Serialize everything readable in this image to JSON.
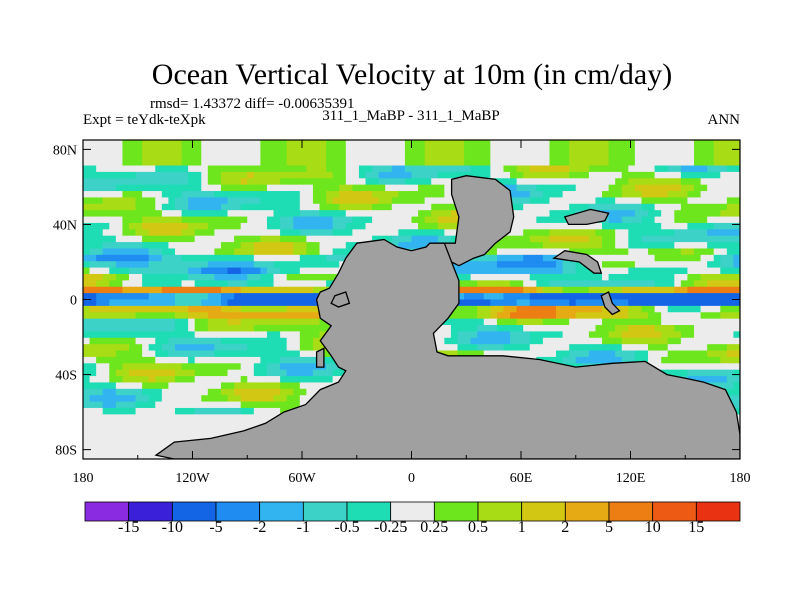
{
  "chart_data": {
    "type": "heatmap",
    "title": "Ocean Vertical Velocity at 10m (in cm/day)",
    "stats_text": "rmsd= 1.43372 diff= -0.00635391",
    "left_label": "Expt = teYdk-teXpk",
    "center_label": "311_1_MaBP - 311_1_MaBP",
    "right_label": "ANN",
    "x_ticks": [
      {
        "value": -180,
        "label": "180"
      },
      {
        "value": -120,
        "label": "120W"
      },
      {
        "value": -60,
        "label": "60W"
      },
      {
        "value": 0,
        "label": "0"
      },
      {
        "value": 60,
        "label": "60E"
      },
      {
        "value": 120,
        "label": "120E"
      },
      {
        "value": 180,
        "label": "180"
      }
    ],
    "y_ticks": [
      {
        "value": 80,
        "label": "80N"
      },
      {
        "value": 40,
        "label": "40N"
      },
      {
        "value": 0,
        "label": "0"
      },
      {
        "value": -40,
        "label": "40S"
      },
      {
        "value": -80,
        "label": "80S"
      }
    ],
    "xlim": [
      -180,
      180
    ],
    "ylim": [
      -85,
      85
    ],
    "colorbar": {
      "labels": [
        "-15",
        "-10",
        "-5",
        "-2",
        "-1",
        "-0.5",
        "-0.25",
        "0.25",
        "0.5",
        "1",
        "2",
        "5",
        "10",
        "15"
      ],
      "colors": [
        "#8a2be2",
        "#3a20d8",
        "#1464e6",
        "#1e8cf0",
        "#32b4f0",
        "#3cd2c8",
        "#1edcb4",
        "#ececec",
        "#6ee61e",
        "#a8dc14",
        "#d2c814",
        "#e6aa14",
        "#ec7e14",
        "#ec5a14",
        "#e83212"
      ]
    },
    "land_color": "#a0a0a0",
    "land_polygons": [
      {
        "name": "pangaea-west",
        "points": [
          [
            -30,
            30
          ],
          [
            -15,
            32
          ],
          [
            -8,
            28
          ],
          [
            0,
            26
          ],
          [
            8,
            28
          ],
          [
            10,
            30
          ],
          [
            18,
            30
          ],
          [
            20,
            28
          ],
          [
            22,
            20
          ],
          [
            26,
            10
          ],
          [
            26,
            -2
          ],
          [
            20,
            -10
          ],
          [
            12,
            -18
          ],
          [
            14,
            -28
          ],
          [
            20,
            -30
          ],
          [
            35,
            -30
          ],
          [
            50,
            -30
          ],
          [
            70,
            -32
          ],
          [
            90,
            -36
          ],
          [
            110,
            -34
          ],
          [
            128,
            -33
          ],
          [
            140,
            -40
          ],
          [
            150,
            -42
          ],
          [
            160,
            -44
          ],
          [
            172,
            -48
          ],
          [
            178,
            -60
          ],
          [
            180,
            -72
          ],
          [
            180,
            -85
          ],
          [
            -130,
            -85
          ],
          [
            -140,
            -83
          ],
          [
            -130,
            -76
          ],
          [
            -110,
            -74
          ],
          [
            -92,
            -70
          ],
          [
            -80,
            -66
          ],
          [
            -70,
            -60
          ],
          [
            -58,
            -56
          ],
          [
            -50,
            -48
          ],
          [
            -40,
            -44
          ],
          [
            -36,
            -38
          ],
          [
            -40,
            -36
          ],
          [
            -44,
            -30
          ],
          [
            -50,
            -22
          ],
          [
            -44,
            -14
          ],
          [
            -50,
            -10
          ],
          [
            -52,
            0
          ],
          [
            -50,
            4
          ],
          [
            -45,
            6
          ],
          [
            -40,
            14
          ],
          [
            -36,
            22
          ]
        ]
      },
      {
        "name": "pangaea-north",
        "points": [
          [
            18,
            30
          ],
          [
            24,
            30
          ],
          [
            26,
            44
          ],
          [
            22,
            56
          ],
          [
            22,
            64
          ],
          [
            30,
            66
          ],
          [
            46,
            64
          ],
          [
            54,
            58
          ],
          [
            56,
            44
          ],
          [
            54,
            36
          ],
          [
            46,
            30
          ],
          [
            40,
            24
          ],
          [
            34,
            22
          ],
          [
            26,
            18
          ],
          [
            22,
            20
          ]
        ]
      },
      {
        "name": "east-terrane",
        "points": [
          [
            78,
            22
          ],
          [
            92,
            20
          ],
          [
            100,
            14
          ],
          [
            104,
            14
          ],
          [
            102,
            20
          ],
          [
            96,
            24
          ],
          [
            84,
            26
          ]
        ]
      },
      {
        "name": "east-island-north",
        "points": [
          [
            84,
            44
          ],
          [
            98,
            48
          ],
          [
            108,
            46
          ],
          [
            106,
            42
          ],
          [
            96,
            40
          ],
          [
            86,
            40
          ]
        ]
      },
      {
        "name": "equator-islet",
        "points": [
          [
            104,
            2
          ],
          [
            108,
            4
          ],
          [
            110,
            -2
          ],
          [
            114,
            -6
          ],
          [
            110,
            -8
          ],
          [
            106,
            -4
          ]
        ]
      },
      {
        "name": "west-islet-a",
        "points": [
          [
            -42,
            2
          ],
          [
            -36,
            4
          ],
          [
            -34,
            -2
          ],
          [
            -40,
            -4
          ],
          [
            -44,
            -2
          ]
        ]
      },
      {
        "name": "west-islet-b",
        "points": [
          [
            -52,
            -28
          ],
          [
            -48,
            -26
          ],
          [
            -48,
            -36
          ],
          [
            -52,
            -36
          ]
        ]
      }
    ]
  }
}
